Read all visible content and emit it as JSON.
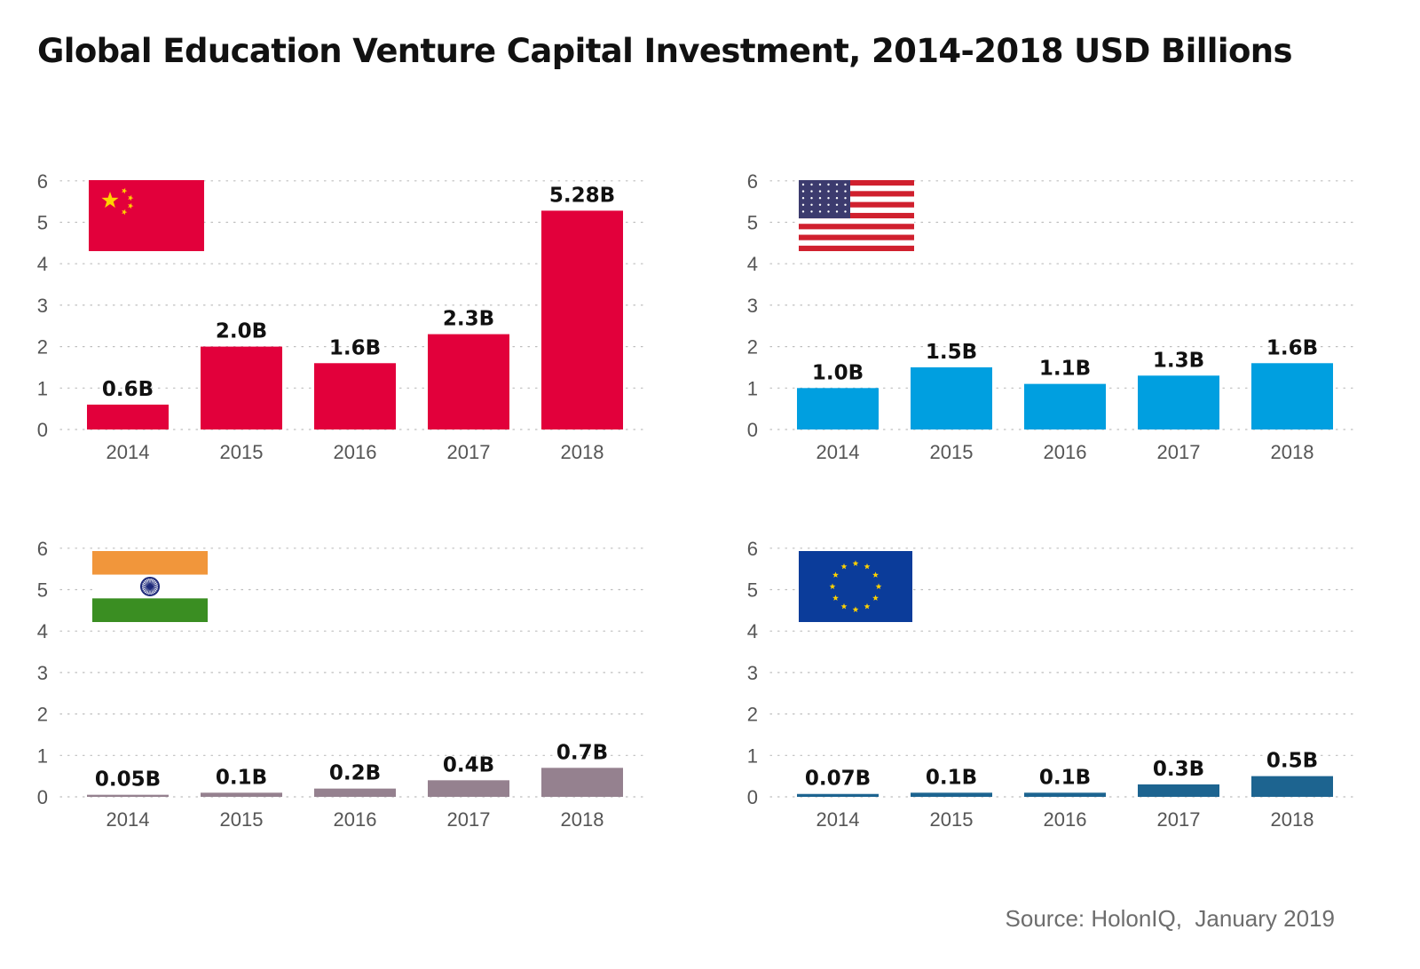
{
  "title": "Global Education Venture Capital Investment, 2014-2018 USD Billions",
  "source": "Source: HolonIQ,  January 2019",
  "chart_data": [
    {
      "type": "bar",
      "flag": "china-flag",
      "color": "#E2003B",
      "categories": [
        "2014",
        "2015",
        "2016",
        "2017",
        "2018"
      ],
      "values": [
        0.6,
        2.0,
        1.6,
        2.3,
        5.28
      ],
      "labels": [
        "0.6B",
        "2.0B",
        "1.6B",
        "2.3B",
        "5.28B"
      ],
      "yticks": [
        "0",
        "1",
        "2",
        "3",
        "4",
        "5",
        "6"
      ],
      "ylim": [
        0,
        6
      ],
      "grid": true
    },
    {
      "type": "bar",
      "flag": "usa-flag",
      "color": "#009FE0",
      "categories": [
        "2014",
        "2015",
        "2016",
        "2017",
        "2018"
      ],
      "values": [
        1.0,
        1.5,
        1.1,
        1.3,
        1.6
      ],
      "labels": [
        "1.0B",
        "1.5B",
        "1.1B",
        "1.3B",
        "1.6B"
      ],
      "yticks": [
        "0",
        "1",
        "2",
        "3",
        "4",
        "5",
        "6"
      ],
      "ylim": [
        0,
        6
      ],
      "grid": true
    },
    {
      "type": "bar",
      "flag": "india-flag",
      "color": "#95818F",
      "categories": [
        "2014",
        "2015",
        "2016",
        "2017",
        "2018"
      ],
      "values": [
        0.05,
        0.1,
        0.2,
        0.4,
        0.7
      ],
      "labels": [
        "0.05B",
        "0.1B",
        "0.2B",
        "0.4B",
        "0.7B"
      ],
      "yticks": [
        "0",
        "1",
        "2",
        "3",
        "4",
        "5",
        "6"
      ],
      "ylim": [
        0,
        6
      ],
      "grid": true
    },
    {
      "type": "bar",
      "flag": "eu-flag",
      "color": "#1D6490",
      "categories": [
        "2014",
        "2015",
        "2016",
        "2017",
        "2018"
      ],
      "values": [
        0.07,
        0.1,
        0.1,
        0.3,
        0.5
      ],
      "labels": [
        "0.07B",
        "0.1B",
        "0.1B",
        "0.3B",
        "0.5B"
      ],
      "yticks": [
        "0",
        "1",
        "2",
        "3",
        "4",
        "5",
        "6"
      ],
      "ylim": [
        0,
        6
      ],
      "grid": true
    }
  ]
}
